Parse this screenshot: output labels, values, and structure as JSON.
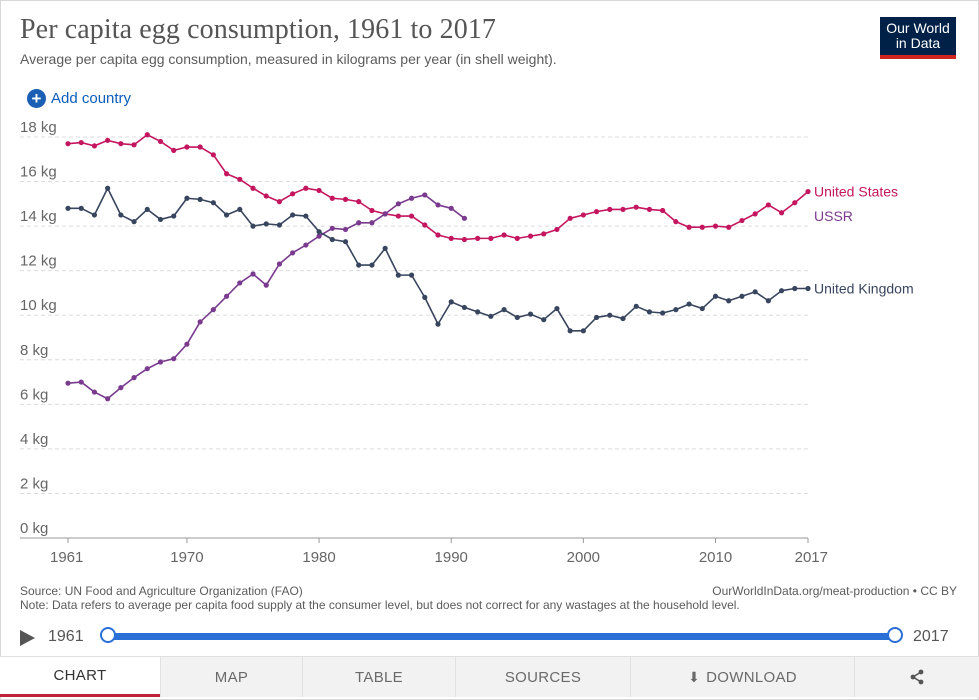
{
  "header": {
    "title": "Per capita egg consumption, 1961 to 2017",
    "subtitle": "Average per capita egg consumption, measured in kilograms per year (in shell weight).",
    "logo_line1": "Our World",
    "logo_line2": "in Data",
    "add_country_label": "Add country"
  },
  "chart_data": {
    "type": "line",
    "title": "Per capita egg consumption, 1961 to 2017",
    "subtitle": "Average per capita egg consumption, measured in kilograms per year (in shell weight).",
    "xlabel": "",
    "ylabel": "",
    "xlim": [
      1961,
      2017
    ],
    "ylim": [
      0,
      18
    ],
    "x_ticks": [
      1961,
      1970,
      1980,
      1990,
      2000,
      2010,
      2017
    ],
    "y_ticks": [
      0,
      2,
      4,
      6,
      8,
      10,
      12,
      14,
      16,
      18
    ],
    "y_unit": "kg",
    "grid": true,
    "legend": "inline-right",
    "series": [
      {
        "name": "United States",
        "color": "#c4165f",
        "x": [
          1961,
          1962,
          1963,
          1964,
          1965,
          1966,
          1967,
          1968,
          1969,
          1970,
          1971,
          1972,
          1973,
          1974,
          1975,
          1976,
          1977,
          1978,
          1979,
          1980,
          1981,
          1982,
          1983,
          1984,
          1985,
          1986,
          1987,
          1988,
          1989,
          1990,
          1991,
          1992,
          1993,
          1994,
          1995,
          1996,
          1997,
          1998,
          1999,
          2000,
          2001,
          2002,
          2003,
          2004,
          2005,
          2006,
          2007,
          2008,
          2009,
          2010,
          2011,
          2012,
          2013,
          2014,
          2015,
          2016,
          2017
        ],
        "values": [
          17.7,
          17.75,
          17.6,
          17.85,
          17.7,
          17.65,
          18.1,
          17.8,
          17.4,
          17.55,
          17.55,
          17.2,
          16.35,
          16.1,
          15.7,
          15.35,
          15.1,
          15.45,
          15.7,
          15.6,
          15.25,
          15.2,
          15.1,
          14.7,
          14.55,
          14.45,
          14.45,
          14.05,
          13.6,
          13.45,
          13.4,
          13.45,
          13.45,
          13.6,
          13.45,
          13.55,
          13.65,
          13.85,
          14.35,
          14.5,
          14.65,
          14.75,
          14.75,
          14.85,
          14.75,
          14.7,
          14.2,
          13.95,
          13.95,
          14.0,
          13.95,
          14.25,
          14.55,
          14.95,
          14.6,
          15.05,
          15.55
        ]
      },
      {
        "name": "USSR",
        "color": "#7a3b8f",
        "x": [
          1961,
          1962,
          1963,
          1964,
          1965,
          1966,
          1967,
          1968,
          1969,
          1970,
          1971,
          1972,
          1973,
          1974,
          1975,
          1976,
          1977,
          1978,
          1979,
          1980,
          1981,
          1982,
          1983,
          1984,
          1985,
          1986,
          1987,
          1988,
          1989,
          1990,
          1991
        ],
        "values": [
          6.95,
          7.0,
          6.55,
          6.25,
          6.75,
          7.2,
          7.6,
          7.9,
          8.05,
          8.7,
          9.7,
          10.25,
          10.85,
          11.45,
          11.85,
          11.35,
          12.3,
          12.8,
          13.15,
          13.55,
          13.9,
          13.85,
          14.15,
          14.15,
          14.55,
          15.0,
          15.25,
          15.4,
          14.95,
          14.8,
          14.35
        ]
      },
      {
        "name": "United Kingdom",
        "color": "#38455e",
        "x": [
          1961,
          1962,
          1963,
          1964,
          1965,
          1966,
          1967,
          1968,
          1969,
          1970,
          1971,
          1972,
          1973,
          1974,
          1975,
          1976,
          1977,
          1978,
          1979,
          1980,
          1981,
          1982,
          1983,
          1984,
          1985,
          1986,
          1987,
          1988,
          1989,
          1990,
          1991,
          1992,
          1993,
          1994,
          1995,
          1996,
          1997,
          1998,
          1999,
          2000,
          2001,
          2002,
          2003,
          2004,
          2005,
          2006,
          2007,
          2008,
          2009,
          2010,
          2011,
          2012,
          2013,
          2014,
          2015,
          2016,
          2017
        ],
        "values": [
          14.8,
          14.8,
          14.5,
          15.7,
          14.5,
          14.2,
          14.75,
          14.3,
          14.45,
          15.25,
          15.2,
          15.05,
          14.5,
          14.75,
          14.0,
          14.1,
          14.05,
          14.5,
          14.45,
          13.75,
          13.4,
          13.3,
          12.25,
          12.25,
          13.0,
          11.8,
          11.8,
          10.8,
          9.6,
          10.6,
          10.35,
          10.15,
          9.95,
          10.25,
          9.9,
          10.05,
          9.8,
          10.3,
          9.3,
          9.3,
          9.9,
          10.0,
          9.85,
          10.4,
          10.15,
          10.1,
          10.25,
          10.5,
          10.3,
          10.85,
          10.65,
          10.85,
          11.05,
          10.65,
          11.1,
          11.2,
          11.2
        ]
      }
    ]
  },
  "footer": {
    "source": "Source: UN Food and Agriculture Organization (FAO)",
    "note": "Note: Data refers to average per capita food supply at the consumer level, but does not correct for any wastages at the household level.",
    "url_license": "OurWorldInData.org/meat-production • CC BY"
  },
  "timeline": {
    "start_year": "1961",
    "end_year": "2017"
  },
  "tabs": [
    {
      "label": "CHART",
      "active": true
    },
    {
      "label": "MAP",
      "active": false
    },
    {
      "label": "TABLE",
      "active": false
    },
    {
      "label": "SOURCES",
      "active": false
    },
    {
      "label": "DOWNLOAD",
      "active": false
    }
  ]
}
